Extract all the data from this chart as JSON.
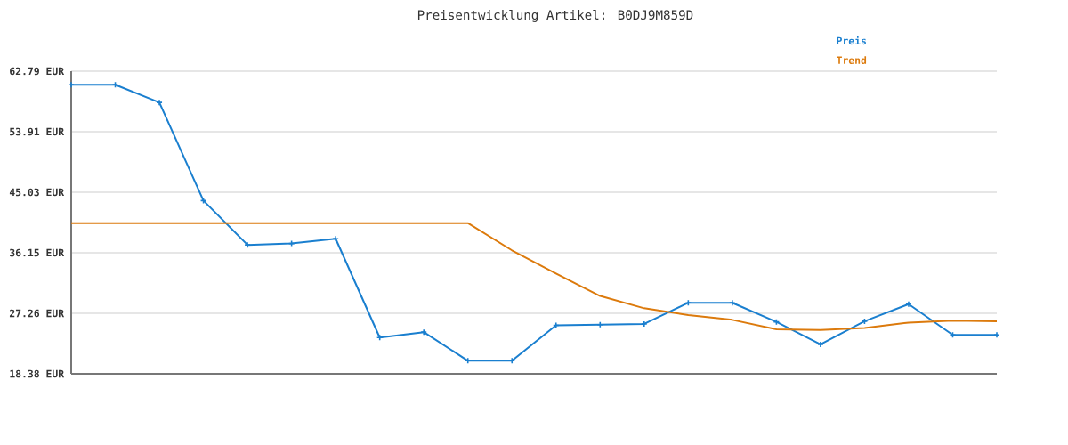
{
  "chart_data": {
    "type": "line",
    "title": "Preisentwicklung Artikel: B0DJ9M859D",
    "categories": [
      null,
      null,
      null,
      null,
      null,
      null,
      null,
      null,
      null,
      null,
      null,
      null,
      null,
      null,
      null,
      null,
      null,
      null,
      null,
      null,
      null,
      null
    ],
    "series": [
      {
        "name": "Preis",
        "color": "#1a7fcf",
        "marker": "cross",
        "values": [
          60.8,
          60.8,
          58.2,
          43.8,
          37.3,
          37.5,
          38.2,
          23.7,
          24.5,
          20.3,
          20.3,
          25.5,
          25.6,
          25.7,
          28.8,
          28.8,
          26.0,
          22.7,
          26.1,
          28.6,
          24.1,
          24.1
        ]
      },
      {
        "name": "Trend",
        "color": "#dc7a0c",
        "marker": "none",
        "values": [
          40.5,
          40.5,
          40.5,
          40.5,
          40.5,
          40.5,
          40.5,
          40.5,
          40.5,
          40.5,
          36.5,
          33.1,
          29.8,
          28.0,
          27.0,
          26.3,
          24.9,
          24.8,
          25.1,
          25.9,
          26.2,
          26.1
        ]
      }
    ],
    "ylim": [
      18.38,
      62.79
    ],
    "yticks": [
      {
        "value": 18.38,
        "label": "18.38 EUR"
      },
      {
        "value": 27.26,
        "label": "27.26 EUR"
      },
      {
        "value": 36.15,
        "label": "36.15 EUR"
      },
      {
        "value": 45.03,
        "label": "45.03 EUR"
      },
      {
        "value": 53.91,
        "label": "53.91 EUR"
      },
      {
        "value": 62.79,
        "label": "62.79 EUR"
      }
    ],
    "grid": "y",
    "legend": "top right",
    "tick_labels": "y"
  }
}
